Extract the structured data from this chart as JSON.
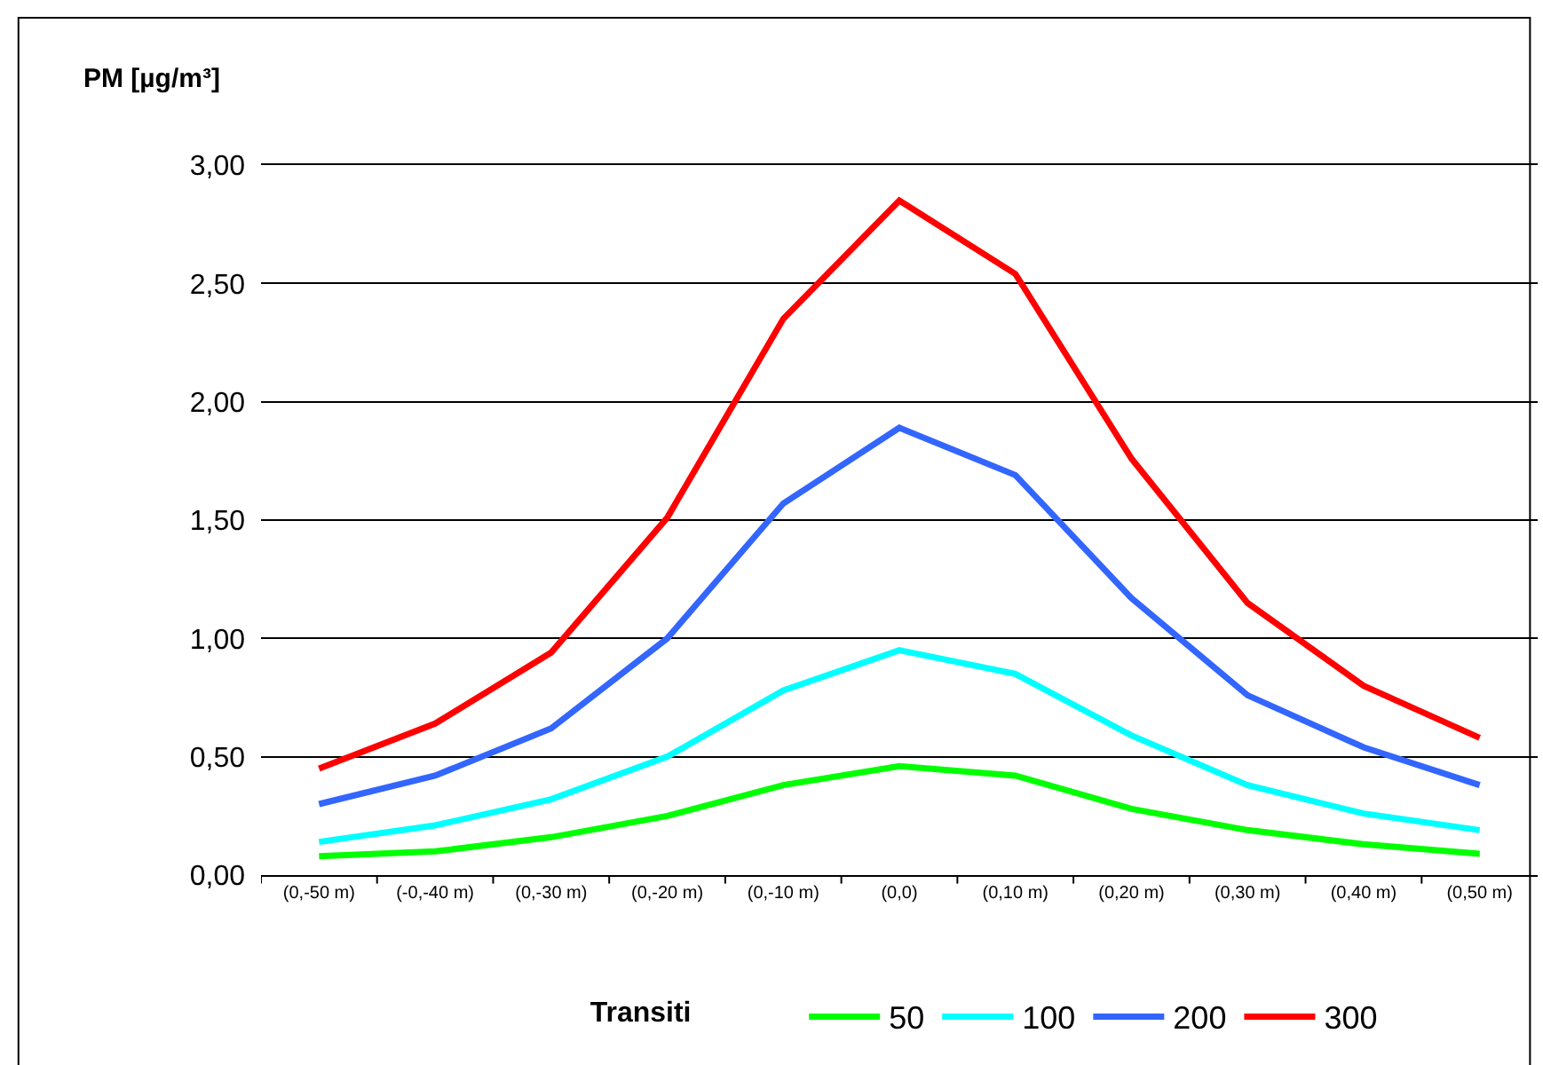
{
  "chart_data": {
    "type": "line",
    "ylabel": "PM [µg/m³]",
    "legend_title": "Transiti",
    "categories": [
      "(0,-50 m)",
      "(-0,-40 m)",
      "(0,-30 m)",
      "(0,-20 m)",
      "(0,-10 m)",
      "(0,0)",
      "(0,10 m)",
      "(0,20 m)",
      "(0,30 m)",
      "(0,40 m)",
      "(0,50 m)"
    ],
    "series": [
      {
        "name": "50",
        "color": "#00ff00",
        "values": [
          0.08,
          0.1,
          0.16,
          0.25,
          0.38,
          0.46,
          0.42,
          0.28,
          0.19,
          0.13,
          0.09
        ]
      },
      {
        "name": "100",
        "color": "#00ffff",
        "values": [
          0.14,
          0.21,
          0.32,
          0.5,
          0.78,
          0.95,
          0.85,
          0.59,
          0.38,
          0.26,
          0.19
        ]
      },
      {
        "name": "200",
        "color": "#3366ff",
        "values": [
          0.3,
          0.42,
          0.62,
          1.0,
          1.57,
          1.89,
          1.69,
          1.17,
          0.76,
          0.54,
          0.38
        ]
      },
      {
        "name": "300",
        "color": "#ff0000",
        "values": [
          0.45,
          0.64,
          0.94,
          1.51,
          2.35,
          2.85,
          2.54,
          1.76,
          1.15,
          0.8,
          0.58
        ]
      }
    ],
    "ylim": [
      0,
      3
    ],
    "yticks": [
      {
        "value": 0,
        "label": "0,00"
      },
      {
        "value": 0.5,
        "label": "0,50"
      },
      {
        "value": 1,
        "label": "1,00"
      },
      {
        "value": 1.5,
        "label": "1,50"
      },
      {
        "value": 2,
        "label": "2,00"
      },
      {
        "value": 2.5,
        "label": "2,50"
      },
      {
        "value": 3,
        "label": "3,00"
      }
    ],
    "grid": "y",
    "legend": "bottom",
    "marker": "none",
    "line_style": "solid"
  }
}
